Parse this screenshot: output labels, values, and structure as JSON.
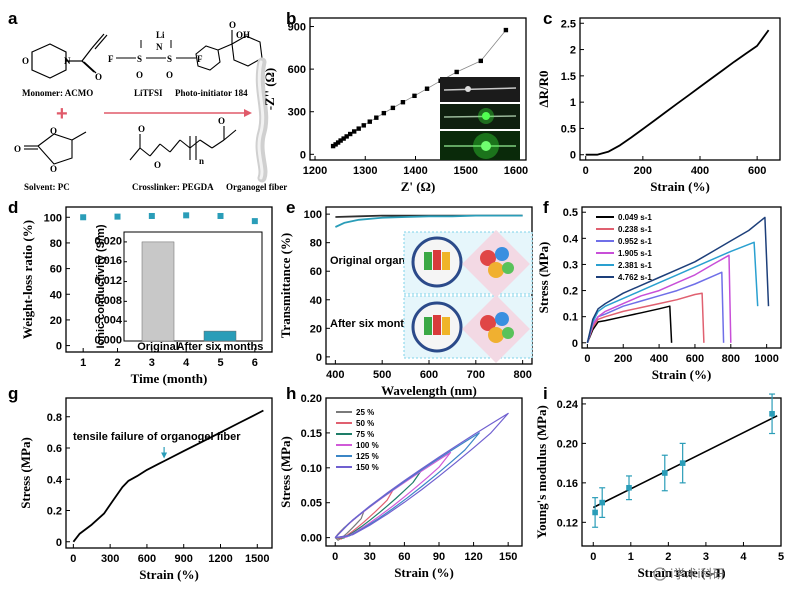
{
  "panel_letters": [
    "a",
    "b",
    "c",
    "d",
    "e",
    "f",
    "g",
    "h",
    "i"
  ],
  "panel_a": {
    "monomer": "Monomer: ACMO",
    "salt": "LiTFSI",
    "photoinitiator": "Photo-initiator 184",
    "solvent": "Solvent: PC",
    "crosslinker": "Crosslinker: PEGDA",
    "fiber": "Organogel fiber",
    "plus": "+"
  },
  "watermark": "i学术i科研",
  "colors": {
    "teal": "#2a9db8",
    "accent": "#e05a6a"
  },
  "chart_data": [
    {
      "panel": "b",
      "type": "scatter",
      "xlabel": "Z' (Ω)",
      "ylabel": "-Z'' (Ω)",
      "xlim": [
        1190,
        1620
      ],
      "ylim": [
        -40,
        960
      ],
      "xticks": [
        1200,
        1300,
        1400,
        1500,
        1600
      ],
      "yticks": [
        0,
        300,
        600,
        900
      ],
      "series": [
        {
          "x": [
            1236,
            1241,
            1246,
            1251,
            1257,
            1263,
            1270,
            1278,
            1287,
            1297,
            1309,
            1322,
            1337,
            1355,
            1375,
            1398,
            1423,
            1450,
            1482,
            1530,
            1580
          ],
          "y": [
            58,
            70,
            83,
            97,
            111,
            126,
            143,
            161,
            181,
            204,
            230,
            258,
            290,
            327,
            367,
            412,
            462,
            518,
            580,
            658,
            875
          ]
        }
      ]
    },
    {
      "panel": "c",
      "type": "line",
      "xlabel": "Strain (%)",
      "ylabel": "ΔR/R0",
      "xlim": [
        -20,
        680
      ],
      "ylim": [
        -0.1,
        2.6
      ],
      "xticks": [
        0,
        200,
        400,
        600
      ],
      "yticks": [
        0.0,
        0.5,
        1.0,
        1.5,
        2.0,
        2.5
      ],
      "series": [
        {
          "x": [
            0,
            40,
            80,
            120,
            160,
            200,
            240,
            280,
            320,
            360,
            400,
            440,
            480,
            520,
            560,
            600,
            640
          ],
          "y": [
            0,
            0,
            0.06,
            0.18,
            0.33,
            0.49,
            0.65,
            0.81,
            0.97,
            1.13,
            1.29,
            1.45,
            1.61,
            1.77,
            1.92,
            2.07,
            2.37
          ]
        }
      ]
    },
    {
      "panel": "d",
      "type": "scatter",
      "xlabel": "Time (month)",
      "ylabel": "Weight-loss ratio (%)",
      "xlim": [
        0.5,
        6.5
      ],
      "ylim": [
        -5,
        108
      ],
      "xticks": [
        1,
        2,
        3,
        4,
        5,
        6
      ],
      "yticks": [
        0,
        20,
        40,
        60,
        80,
        100
      ],
      "series": [
        {
          "x": [
            1,
            2,
            3,
            4,
            5,
            6
          ],
          "y": [
            100,
            100.5,
            101,
            101.5,
            101,
            97
          ]
        }
      ],
      "inset": {
        "type": "bar",
        "ylabel": "Ionic conductivity (S/m)",
        "categories": [
          "Original",
          "After six months"
        ],
        "values": [
          0.02,
          0.002
        ],
        "ylim": [
          0,
          0.022
        ],
        "yticks": [
          "0.000",
          "0.004",
          "0.008",
          "0.012",
          "0.016",
          "0.020"
        ]
      }
    },
    {
      "panel": "e",
      "type": "line",
      "xlabel": "Wavelength (nm)",
      "ylabel": "Transmittance (%)",
      "xlim": [
        380,
        820
      ],
      "ylim": [
        -5,
        105
      ],
      "xticks": [
        400,
        500,
        600,
        700,
        800
      ],
      "yticks": [
        0,
        20,
        40,
        60,
        80,
        100
      ],
      "annotations": [
        "Original organogel",
        "After six months"
      ],
      "series": [
        {
          "x": [
            400,
            450,
            500,
            600,
            700,
            800
          ],
          "y": [
            98,
            98.5,
            99,
            99,
            99,
            99
          ]
        },
        {
          "x": [
            400,
            420,
            450,
            500,
            550,
            600,
            650,
            700,
            800
          ],
          "y": [
            91,
            94,
            96,
            97.5,
            98,
            98.5,
            98.5,
            99,
            99
          ]
        }
      ]
    },
    {
      "panel": "f",
      "type": "line",
      "xlabel": "Strain (%)",
      "ylabel": "Stress (MPa)",
      "xlim": [
        -30,
        1080
      ],
      "ylim": [
        -0.02,
        0.52
      ],
      "xticks": [
        0,
        200,
        400,
        600,
        800,
        1000
      ],
      "yticks": [
        0.0,
        0.1,
        0.2,
        0.3,
        0.4,
        0.5
      ],
      "series": [
        {
          "name": "0.049 s-1",
          "color": "#000000",
          "x": [
            0,
            30,
            60,
            100,
            200,
            300,
            400,
            460,
            470
          ],
          "y": [
            0,
            0.05,
            0.08,
            0.085,
            0.1,
            0.115,
            0.13,
            0.14,
            0
          ]
        },
        {
          "name": "0.238 s-1",
          "color": "#e06070",
          "x": [
            0,
            30,
            60,
            100,
            200,
            300,
            400,
            500,
            600,
            640,
            650
          ],
          "y": [
            0,
            0.06,
            0.09,
            0.1,
            0.12,
            0.135,
            0.15,
            0.165,
            0.185,
            0.19,
            0
          ]
        },
        {
          "name": "0.952 s-1",
          "color": "#6f6fe8",
          "x": [
            0,
            30,
            60,
            100,
            200,
            300,
            400,
            500,
            600,
            700,
            750,
            760
          ],
          "y": [
            0,
            0.07,
            0.1,
            0.11,
            0.14,
            0.16,
            0.18,
            0.2,
            0.225,
            0.255,
            0.27,
            0
          ]
        },
        {
          "name": "1.905 s-1",
          "color": "#c84fd8",
          "x": [
            0,
            30,
            60,
            100,
            200,
            300,
            400,
            500,
            600,
            700,
            790,
            800
          ],
          "y": [
            0,
            0.07,
            0.1,
            0.12,
            0.15,
            0.18,
            0.2,
            0.23,
            0.26,
            0.3,
            0.335,
            0
          ]
        },
        {
          "name": "2.381 s-1",
          "color": "#2aa0d0",
          "x": [
            0,
            30,
            60,
            100,
            200,
            300,
            400,
            500,
            600,
            700,
            800,
            930,
            950
          ],
          "y": [
            0,
            0.08,
            0.12,
            0.14,
            0.17,
            0.2,
            0.23,
            0.26,
            0.29,
            0.32,
            0.35,
            0.385,
            0.14
          ]
        },
        {
          "name": "4.762 s-1",
          "color": "#1d3f7a",
          "x": [
            0,
            30,
            60,
            100,
            200,
            300,
            400,
            500,
            600,
            700,
            800,
            900,
            990,
            1010
          ],
          "y": [
            0,
            0.09,
            0.13,
            0.15,
            0.19,
            0.22,
            0.25,
            0.28,
            0.31,
            0.35,
            0.39,
            0.43,
            0.48,
            0.14
          ]
        }
      ]
    },
    {
      "panel": "g",
      "type": "line",
      "xlabel": "Strain (%)",
      "ylabel": "Stress (MPa)",
      "xlim": [
        -60,
        1620
      ],
      "ylim": [
        -0.04,
        0.92
      ],
      "xticks": [
        0,
        300,
        600,
        900,
        1200,
        1500
      ],
      "yticks": [
        0.0,
        0.2,
        0.4,
        0.6,
        0.8
      ],
      "annotation": "tensile failure of organogel fiber",
      "series": [
        {
          "x": [
            0,
            50,
            150,
            250,
            320,
            400,
            450,
            520,
            600,
            700,
            750,
            900,
            1050,
            1200,
            1350,
            1450,
            1550
          ],
          "y": [
            0,
            0.05,
            0.11,
            0.18,
            0.26,
            0.35,
            0.39,
            0.42,
            0.46,
            0.5,
            0.52,
            0.58,
            0.64,
            0.7,
            0.76,
            0.8,
            0.84
          ]
        }
      ]
    },
    {
      "panel": "h",
      "type": "line",
      "xlabel": "Strain (%)",
      "ylabel": "Stress (MPa)",
      "xlim": [
        -8,
        162
      ],
      "ylim": [
        -0.012,
        0.2
      ],
      "xticks": [
        0,
        30,
        60,
        90,
        120,
        150
      ],
      "yticks": [
        "0.00",
        "0.05",
        "0.10",
        "0.15",
        "0.20"
      ],
      "series": [
        {
          "name": "25 %",
          "color": "#7a7a7a",
          "max": 25,
          "peak": 0.038
        },
        {
          "name": "50 %",
          "color": "#e06070",
          "max": 50,
          "peak": 0.068
        },
        {
          "name": "75 %",
          "color": "#1e7d68",
          "max": 75,
          "peak": 0.097
        },
        {
          "name": "100 %",
          "color": "#d05ad8",
          "max": 100,
          "peak": 0.122
        },
        {
          "name": "125 %",
          "color": "#3b86c6",
          "max": 125,
          "peak": 0.15
        },
        {
          "name": "150 %",
          "color": "#7060d0",
          "max": 150,
          "peak": 0.178
        }
      ]
    },
    {
      "panel": "i",
      "type": "scatter",
      "xlabel": "Strain rate (s-1)",
      "ylabel": "Young's modulus (MPa)",
      "xlim": [
        -0.3,
        5.0
      ],
      "ylim": [
        0.096,
        0.246
      ],
      "xticks": [
        0,
        1,
        2,
        3,
        4,
        5
      ],
      "yticks": [
        "0.12",
        "0.16",
        "0.20",
        "0.24"
      ],
      "series": [
        {
          "x": [
            0.049,
            0.238,
            0.952,
            1.905,
            2.381,
            4.762
          ],
          "y": [
            0.13,
            0.14,
            0.155,
            0.17,
            0.18,
            0.23
          ],
          "err": [
            0.015,
            0.015,
            0.012,
            0.018,
            0.02,
            0.02
          ]
        }
      ],
      "fit": {
        "x": [
          0,
          4.9
        ],
        "y": [
          0.135,
          0.228
        ]
      }
    }
  ]
}
